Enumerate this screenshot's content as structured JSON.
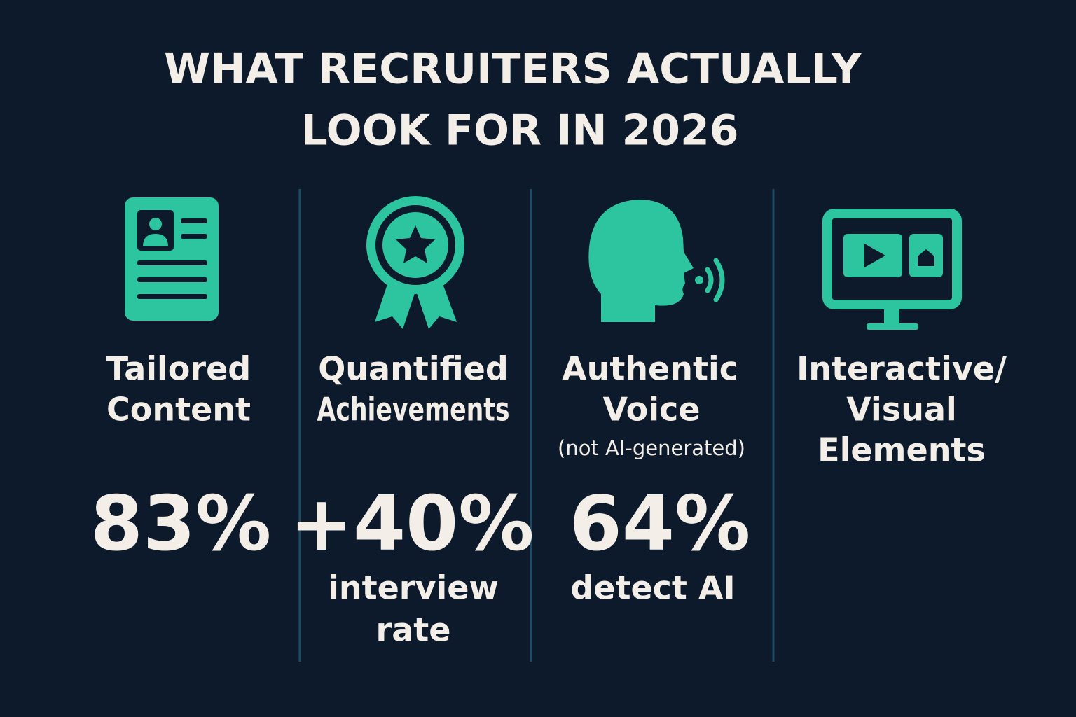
{
  "title": [
    "WHAT RECRUITERS ACTUALLY",
    "LOOK FOR IN 2026"
  ],
  "columns": [
    {
      "label": [
        "Tailored",
        "Content"
      ],
      "stat": "83%"
    },
    {
      "label": [
        "Quantified",
        "Achievements"
      ],
      "stat": "+40%",
      "caption": [
        "interview",
        "rate"
      ]
    },
    {
      "label": [
        "Authentic",
        "Voice"
      ],
      "note": "(not AI-generated)",
      "stat": "64%",
      "caption": [
        "detect AI"
      ]
    },
    {
      "label": [
        "Interactive/",
        "Visual",
        "Elements"
      ]
    }
  ]
}
